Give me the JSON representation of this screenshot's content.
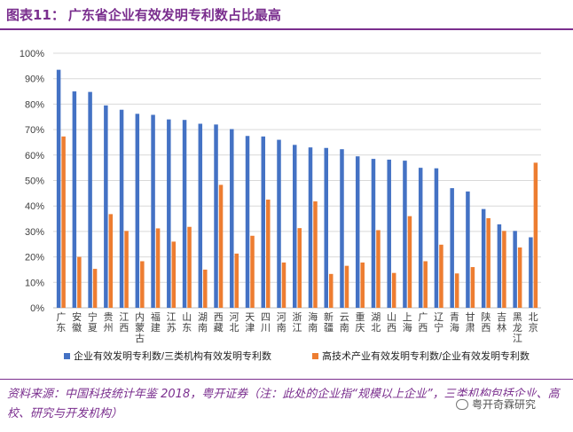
{
  "header": {
    "title_prefix": "图表11：",
    "title": "广东省企业有效发明专利数占比最高"
  },
  "colors": {
    "series1": "#4472C4",
    "series2": "#ED7D31",
    "accent": "#7a2e8e"
  },
  "chart_data": {
    "type": "bar",
    "title": "广东省企业有效发明专利数占比最高",
    "categories": [
      "广东",
      "安徽",
      "宁夏",
      "贵州",
      "江西",
      "内蒙古",
      "福建",
      "江苏",
      "山东",
      "湖南",
      "西藏",
      "河北",
      "天津",
      "四川",
      "河南",
      "浙江",
      "海南",
      "新疆",
      "云南",
      "重庆",
      "湖北",
      "山西",
      "上海",
      "广西",
      "辽宁",
      "青海",
      "甘肃",
      "陕西",
      "吉林",
      "黑龙江",
      "北京"
    ],
    "category_label_lines": [
      [
        "广",
        "东"
      ],
      [
        "安",
        "徽"
      ],
      [
        "宁",
        "夏"
      ],
      [
        "贵",
        "州"
      ],
      [
        "江",
        "西"
      ],
      [
        "内",
        "蒙",
        "古"
      ],
      [
        "福",
        "建"
      ],
      [
        "江",
        "苏"
      ],
      [
        "山",
        "东"
      ],
      [
        "湖",
        "南"
      ],
      [
        "西",
        "藏"
      ],
      [
        "河",
        "北"
      ],
      [
        "天",
        "津"
      ],
      [
        "四",
        "川"
      ],
      [
        "河",
        "南"
      ],
      [
        "浙",
        "江"
      ],
      [
        "海",
        "南"
      ],
      [
        "新",
        "疆"
      ],
      [
        "云",
        "南"
      ],
      [
        "重",
        "庆"
      ],
      [
        "湖",
        "北"
      ],
      [
        "山",
        "西"
      ],
      [
        "上",
        "海"
      ],
      [
        "广",
        "西"
      ],
      [
        "辽",
        "宁"
      ],
      [
        "青",
        "海"
      ],
      [
        "甘",
        "肃"
      ],
      [
        "陕",
        "西"
      ],
      [
        "吉",
        "林"
      ],
      [
        "黑",
        "龙",
        "江"
      ],
      [
        "北",
        "京"
      ]
    ],
    "series": [
      {
        "name": "企业有效发明专利数/三类机构有效发明专利数",
        "values": [
          93.5,
          85,
          84.8,
          79.5,
          77.8,
          76.2,
          75.8,
          74,
          73.8,
          72.3,
          72,
          70.2,
          67.5,
          67.3,
          66,
          64,
          63,
          62.8,
          62.3,
          59.5,
          58.5,
          58.2,
          57.8,
          55,
          54.8,
          47,
          45.7,
          38.8,
          32.8,
          30.2,
          27.7
        ]
      },
      {
        "name": "高技术产业有效发明专利数/企业有效发明专利数",
        "values": [
          67.3,
          20,
          15.3,
          36.8,
          30.2,
          18.3,
          31.2,
          26,
          31.8,
          15,
          48.3,
          21.3,
          28.3,
          42.5,
          17.8,
          31.3,
          41.8,
          13.3,
          16.5,
          17.8,
          30.5,
          13.7,
          36,
          18.3,
          24.8,
          13.5,
          16,
          35.2,
          30.2,
          23.7,
          57
        ]
      }
    ],
    "yticks": [
      "100%",
      "90%",
      "80%",
      "70%",
      "60%",
      "50%",
      "40%",
      "30%",
      "20%",
      "10%",
      "0%"
    ],
    "ylim": [
      0,
      100
    ],
    "legend_position": "bottom",
    "grid": true
  },
  "footer": {
    "note": "资料来源：中国科技统计年鉴 2018，粤开证券（注：此处的企业指“规模以上企业”，三类机构包括企业、高校、研究与开发机构）",
    "watermark": "粤开奇霖研究"
  }
}
